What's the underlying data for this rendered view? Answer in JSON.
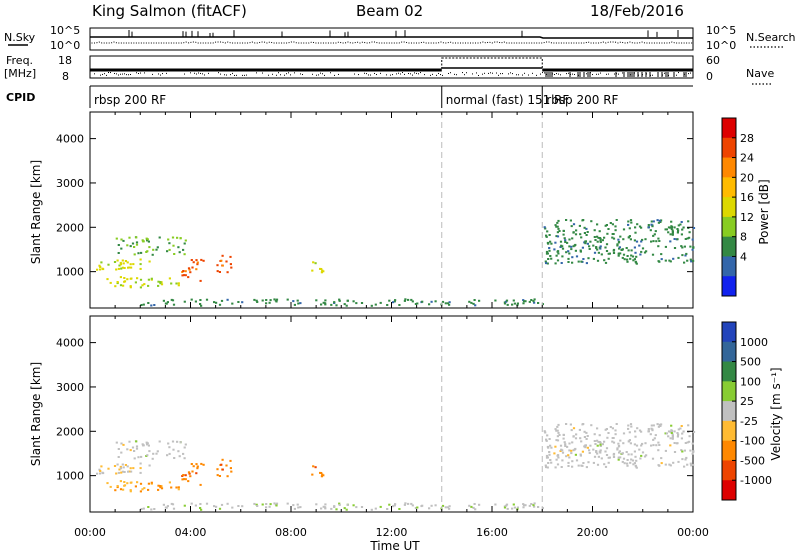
{
  "header": {
    "station": "King Salmon (fitACF)",
    "beam": "Beam 02",
    "date": "18/Feb/2016"
  },
  "top_panels": {
    "nsky_label": "N.Sky",
    "nsky_ticks": [
      "10^5",
      "10^0"
    ],
    "nsearch_label": "N.Search",
    "nsearch_ticks": [
      "10^5",
      "10^0"
    ],
    "freq_label_1": "Freq.",
    "freq_label_2": "[MHz]",
    "freq_ticks": [
      "18",
      "8"
    ],
    "nave_label": "Nave",
    "nave_ticks": [
      "60",
      "0"
    ],
    "cpid_label": "CPID",
    "cpid_segments": [
      {
        "label": "rbsp 200 RF",
        "start_hour": 0
      },
      {
        "label": "normal (fast) 151 RF",
        "start_hour": 14
      },
      {
        "label": "rbsp 200 RF",
        "start_hour": 18
      }
    ]
  },
  "power_colorbar": {
    "label": "Power [dB]",
    "ticks": [
      "28",
      "24",
      "20",
      "16",
      "12",
      "8",
      "4"
    ],
    "colors": [
      "#dd0000",
      "#ee4400",
      "#ff8800",
      "#ffbb00",
      "#ddd800",
      "#88cc22",
      "#338844",
      "#3366aa",
      "#1122ee"
    ]
  },
  "velocity_colorbar": {
    "label": "Velocity [m s⁻¹]",
    "ticks": [
      "1000",
      "500",
      "100",
      "25",
      "-25",
      "-100",
      "-500",
      "-1000"
    ],
    "colors": [
      "#2244bb",
      "#336699",
      "#338844",
      "#88cc33",
      "#c0c0c0",
      "#ffbb33",
      "#ff8800",
      "#ee4400",
      "#dd0000"
    ]
  },
  "x_axis": {
    "label": "Time UT",
    "ticks": [
      "00:00",
      "04:00",
      "08:00",
      "12:00",
      "16:00",
      "20:00",
      "00:00"
    ]
  },
  "y_axis": {
    "label": "Slant Range [km]",
    "ticks": [
      "1000",
      "2000",
      "3000",
      "4000"
    ]
  },
  "chart_data": [
    {
      "type": "heatmap",
      "title": "",
      "xlabel": "Time UT",
      "ylabel": "Slant Range [km]",
      "xlim_hours": [
        0,
        24
      ],
      "ylim_km": [
        180,
        4600
      ],
      "colorbar": "Power [dB]",
      "clim": [
        0,
        30
      ],
      "scatter_regions": [
        {
          "t0": 0.2,
          "t1": 2.4,
          "r0": 1050,
          "r1": 1300,
          "value": 14
        },
        {
          "t0": 1.0,
          "t1": 3.8,
          "r0": 1400,
          "r1": 1800,
          "value": 10
        },
        {
          "t0": 0.5,
          "t1": 3.6,
          "r0": 650,
          "r1": 900,
          "value": 14
        },
        {
          "t0": 3.6,
          "t1": 4.5,
          "r0": 800,
          "r1": 1300,
          "value": 24
        },
        {
          "t0": 5.0,
          "t1": 5.6,
          "r0": 1000,
          "r1": 1400,
          "value": 24
        },
        {
          "t0": 8.8,
          "t1": 9.3,
          "r0": 1000,
          "r1": 1300,
          "value": 14
        },
        {
          "t0": 2.0,
          "t1": 18.0,
          "r0": 250,
          "r1": 400,
          "value": 8
        },
        {
          "t0": 18.0,
          "t1": 24.0,
          "r0": 1200,
          "r1": 2200,
          "value": 8
        }
      ]
    },
    {
      "type": "heatmap",
      "title": "",
      "xlabel": "Time UT",
      "ylabel": "Slant Range [km]",
      "xlim_hours": [
        0,
        24
      ],
      "ylim_km": [
        180,
        4600
      ],
      "colorbar": "Velocity [m s⁻¹]",
      "clim": [
        -1000,
        1000
      ],
      "scatter_regions": [
        {
          "t0": 0.2,
          "t1": 2.4,
          "r0": 1050,
          "r1": 1300,
          "value": -100
        },
        {
          "t0": 1.0,
          "t1": 3.8,
          "r0": 1400,
          "r1": 1800,
          "value": 0
        },
        {
          "t0": 0.5,
          "t1": 3.6,
          "r0": 650,
          "r1": 900,
          "value": -300
        },
        {
          "t0": 3.6,
          "t1": 4.5,
          "r0": 800,
          "r1": 1300,
          "value": -500
        },
        {
          "t0": 5.0,
          "t1": 5.6,
          "r0": 1000,
          "r1": 1400,
          "value": -500
        },
        {
          "t0": 8.8,
          "t1": 9.3,
          "r0": 1000,
          "r1": 1300,
          "value": -500
        },
        {
          "t0": 2.0,
          "t1": 18.0,
          "r0": 250,
          "r1": 400,
          "value": 50
        },
        {
          "t0": 18.0,
          "t1": 24.0,
          "r0": 1200,
          "r1": 2200,
          "value": 0
        }
      ]
    }
  ]
}
